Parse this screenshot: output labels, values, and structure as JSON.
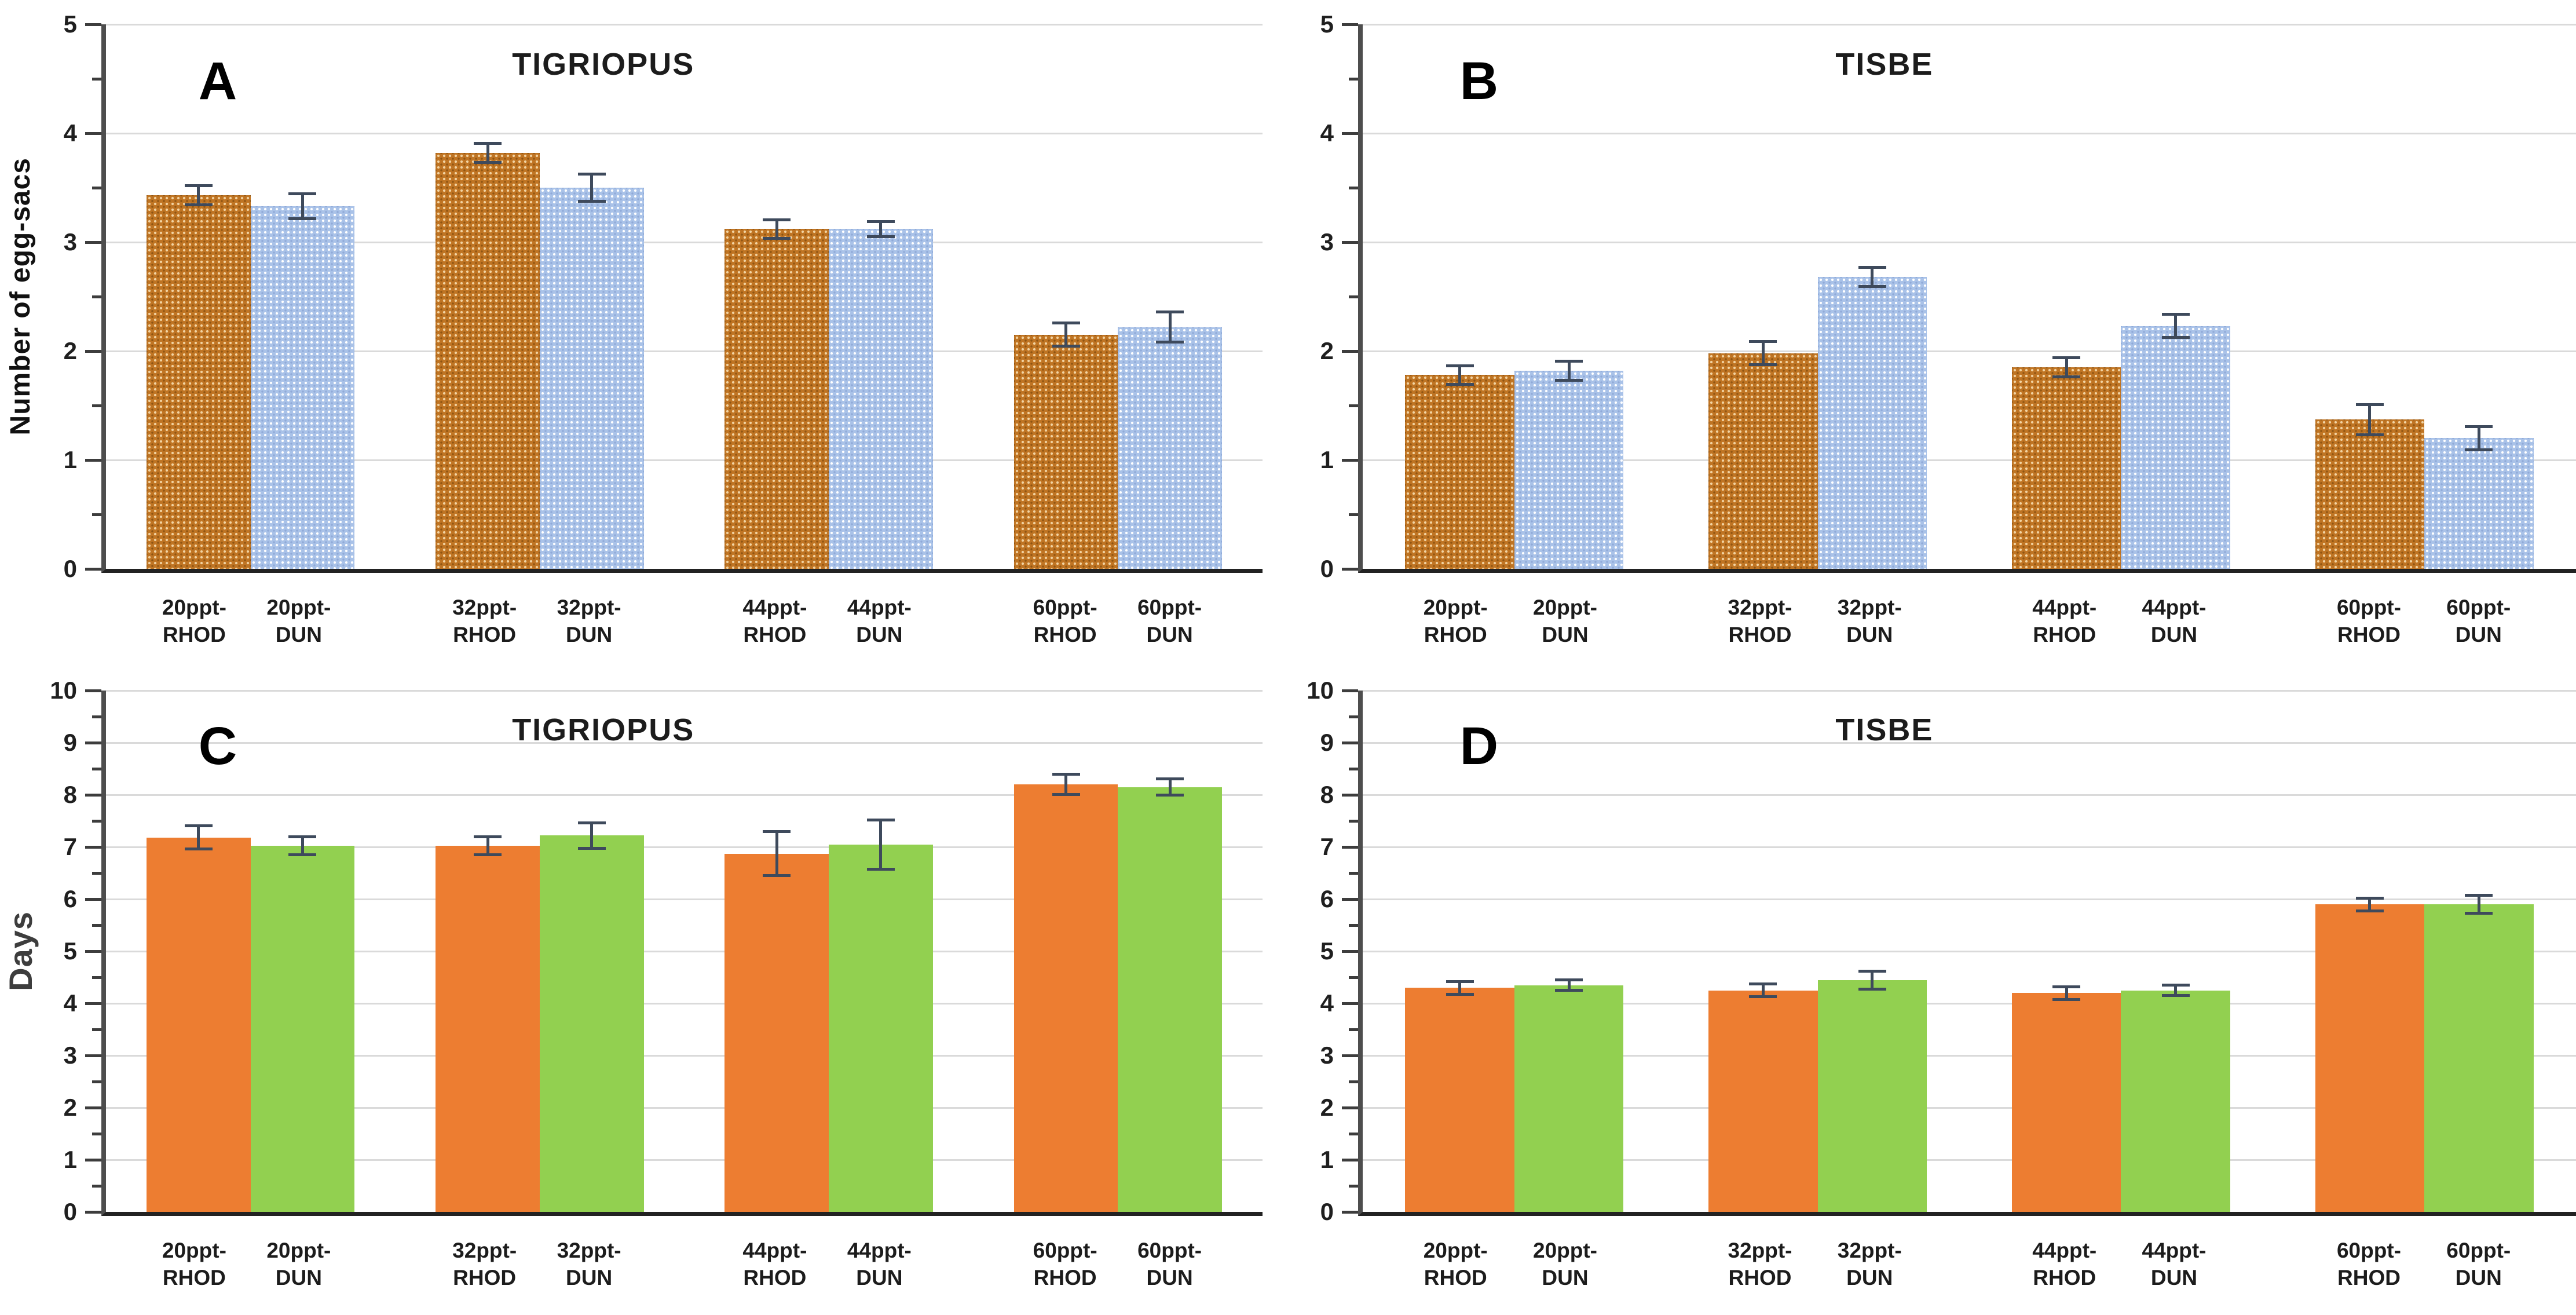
{
  "figure_title": "",
  "colors": {
    "rhod_pattern_base": "#BF7423",
    "rhod_pattern_dot": "#F2D3A2",
    "dun_pattern_base": "#A9C2E8",
    "dun_pattern_dot": "#FFFFFF",
    "rhod_solid": "#ED7D31",
    "dun_solid": "#92D050",
    "error_bar": "#3E4A5C",
    "gridline": "#DADADA",
    "axis_spine": "#4D4D4D",
    "text": "#1F1F1F"
  },
  "chart_data": [
    {
      "type": "bar",
      "panel_letter": "A",
      "title": "TIGRIOPUS",
      "ylabel": "Number of egg-sacs",
      "ylim": [
        0,
        5
      ],
      "ytick_step": 1,
      "minor_tick_step": 0.5,
      "grid": true,
      "legend_position": "none",
      "bar_style": "pattern",
      "categories": [
        "20ppt-RHOD",
        "20ppt-DUN",
        "32ppt-RHOD",
        "32ppt-DUN",
        "44ppt-RHOD",
        "44ppt-DUN",
        "60ppt-RHOD",
        "60ppt-DUN"
      ],
      "series": [
        {
          "name": "RHOD",
          "values": [
            3.43,
            3.82,
            3.12,
            2.15
          ],
          "errors": [
            0.1,
            0.1,
            0.1,
            0.12
          ]
        },
        {
          "name": "DUN",
          "values": [
            3.33,
            3.5,
            3.12,
            2.22
          ],
          "errors": [
            0.13,
            0.14,
            0.08,
            0.15
          ]
        }
      ]
    },
    {
      "type": "bar",
      "panel_letter": "B",
      "title": "TISBE",
      "ylabel": "",
      "ylim": [
        0,
        5
      ],
      "ytick_step": 1,
      "minor_tick_step": 0.5,
      "grid": true,
      "legend_position": "none",
      "bar_style": "pattern",
      "categories": [
        "20ppt-RHOD",
        "20ppt-DUN",
        "32ppt-RHOD",
        "32ppt-DUN",
        "44ppt-RHOD",
        "44ppt-DUN",
        "60ppt-RHOD",
        "60ppt-DUN"
      ],
      "series": [
        {
          "name": "RHOD",
          "values": [
            1.78,
            1.98,
            1.85,
            1.37
          ],
          "errors": [
            0.1,
            0.12,
            0.1,
            0.15
          ]
        },
        {
          "name": "DUN",
          "values": [
            1.82,
            2.68,
            2.23,
            1.2
          ],
          "errors": [
            0.1,
            0.1,
            0.12,
            0.12
          ]
        }
      ]
    },
    {
      "type": "bar",
      "panel_letter": "C",
      "title": "TIGRIOPUS",
      "ylabel": "Days",
      "ylim": [
        0,
        10
      ],
      "ytick_step": 1,
      "minor_tick_step": 0.5,
      "grid": true,
      "legend_position": "none",
      "bar_style": "solid",
      "categories": [
        "20ppt-RHOD",
        "20ppt-DUN",
        "32ppt-RHOD",
        "32ppt-DUN",
        "44ppt-RHOD",
        "44ppt-DUN",
        "60ppt-RHOD",
        "60ppt-DUN"
      ],
      "series": [
        {
          "name": "RHOD",
          "values": [
            7.18,
            7.02,
            6.87,
            8.2
          ],
          "errors": [
            0.25,
            0.2,
            0.45,
            0.22
          ]
        },
        {
          "name": "DUN",
          "values": [
            7.02,
            7.22,
            7.05,
            8.15
          ],
          "errors": [
            0.2,
            0.27,
            0.5,
            0.18
          ]
        }
      ]
    },
    {
      "type": "bar",
      "panel_letter": "D",
      "title": "TISBE",
      "ylabel": "",
      "ylim": [
        0,
        10
      ],
      "ytick_step": 1,
      "minor_tick_step": 0.5,
      "grid": true,
      "legend_position": "none",
      "bar_style": "solid",
      "categories": [
        "20ppt-RHOD",
        "20ppt-DUN",
        "32ppt-RHOD",
        "32ppt-DUN",
        "44ppt-RHOD",
        "44ppt-DUN",
        "60ppt-RHOD",
        "60ppt-DUN"
      ],
      "series": [
        {
          "name": "RHOD",
          "values": [
            4.3,
            4.25,
            4.2,
            5.9
          ],
          "errors": [
            0.15,
            0.15,
            0.15,
            0.15
          ]
        },
        {
          "name": "DUN",
          "values": [
            4.35,
            4.45,
            4.25,
            5.9
          ],
          "errors": [
            0.13,
            0.2,
            0.13,
            0.2
          ]
        }
      ]
    }
  ]
}
